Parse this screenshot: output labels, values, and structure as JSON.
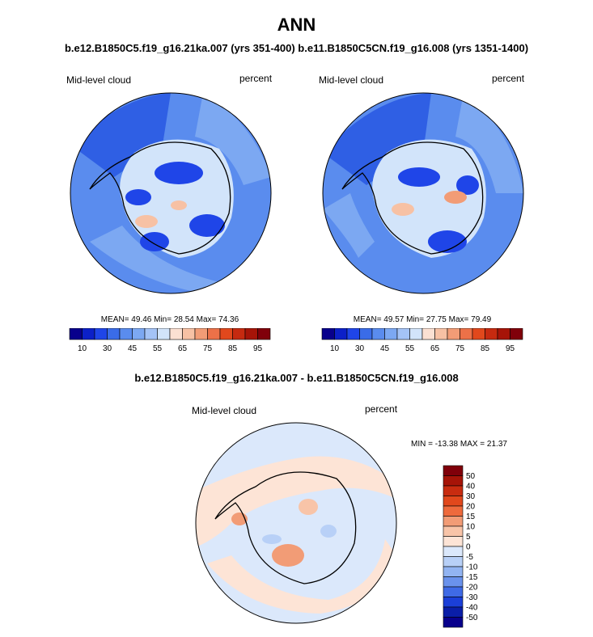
{
  "figure": {
    "title": "ANN",
    "subtitle": "b.e12.B1850C5.f19_g16.21ka.007 (yrs 351-400) b.e11.B1850C5CN.f19_g16.008 (yrs 1351-1400)",
    "diff_title": "b.e12.B1850C5.f19_g16.21ka.007 - b.e11.B1850C5CN.f19_g16.008"
  },
  "chart_data": [
    {
      "type": "heatmap",
      "projection": "south-polar stereographic",
      "variable": "Mid-level cloud",
      "units": "percent",
      "stats": {
        "mean": "49.46",
        "min": "28.54",
        "max": "74.36"
      },
      "stats_text": "MEAN=  49.46  Min=  28.54  Max=  74.36",
      "colorbar": {
        "orientation": "horizontal",
        "levels": [
          10,
          20,
          30,
          40,
          45,
          50,
          55,
          60,
          65,
          70,
          75,
          80,
          85,
          90,
          95
        ],
        "tick_labels": [
          "10",
          "30",
          "45",
          "55",
          "65",
          "75",
          "85",
          "95"
        ],
        "colors": [
          "#08008c",
          "#0c20c8",
          "#1f45e8",
          "#3a6ce8",
          "#5a8cee",
          "#7ca8f2",
          "#a4c3f6",
          "#d2e4fa",
          "#fbe0d2",
          "#f7c1a4",
          "#f29c76",
          "#ec7148",
          "#e1481c",
          "#c62a10",
          "#a61408",
          "#80000a"
        ]
      }
    },
    {
      "type": "heatmap",
      "projection": "south-polar stereographic",
      "variable": "Mid-level cloud",
      "units": "percent",
      "stats": {
        "mean": "49.57",
        "min": "27.75",
        "max": "79.49"
      },
      "stats_text": "MEAN=  49.57  Min=  27.75  Max=  79.49",
      "colorbar": {
        "orientation": "horizontal",
        "levels": [
          10,
          20,
          30,
          40,
          45,
          50,
          55,
          60,
          65,
          70,
          75,
          80,
          85,
          90,
          95
        ],
        "tick_labels": [
          "10",
          "30",
          "45",
          "55",
          "65",
          "75",
          "85",
          "95"
        ],
        "colors": [
          "#08008c",
          "#0c20c8",
          "#1f45e8",
          "#3a6ce8",
          "#5a8cee",
          "#7ca8f2",
          "#a4c3f6",
          "#d2e4fa",
          "#fbe0d2",
          "#f7c1a4",
          "#f29c76",
          "#ec7148",
          "#e1481c",
          "#c62a10",
          "#a61408",
          "#80000a"
        ]
      }
    },
    {
      "type": "heatmap",
      "projection": "south-polar stereographic",
      "variable": "Mid-level cloud",
      "units": "percent",
      "stats": {
        "min": "-13.38",
        "max": "21.37"
      },
      "stats_text": "MIN = -13.38 MAX =  21.37",
      "colorbar": {
        "orientation": "vertical",
        "tick_labels": [
          "50",
          "40",
          "30",
          "20",
          "15",
          "10",
          "5",
          "0",
          "-5",
          "-10",
          "-15",
          "-20",
          "-30",
          "-40",
          "-50"
        ],
        "colors": [
          "#80000a",
          "#a61408",
          "#c82c10",
          "#e1481c",
          "#ee6a3c",
          "#f29c76",
          "#f8c4a8",
          "#fde4d6",
          "#dbe8fb",
          "#b8d0f7",
          "#92b4f2",
          "#6a92ec",
          "#3f6ae6",
          "#1b3fd8",
          "#0a1ea8",
          "#08008c"
        ]
      }
    }
  ]
}
